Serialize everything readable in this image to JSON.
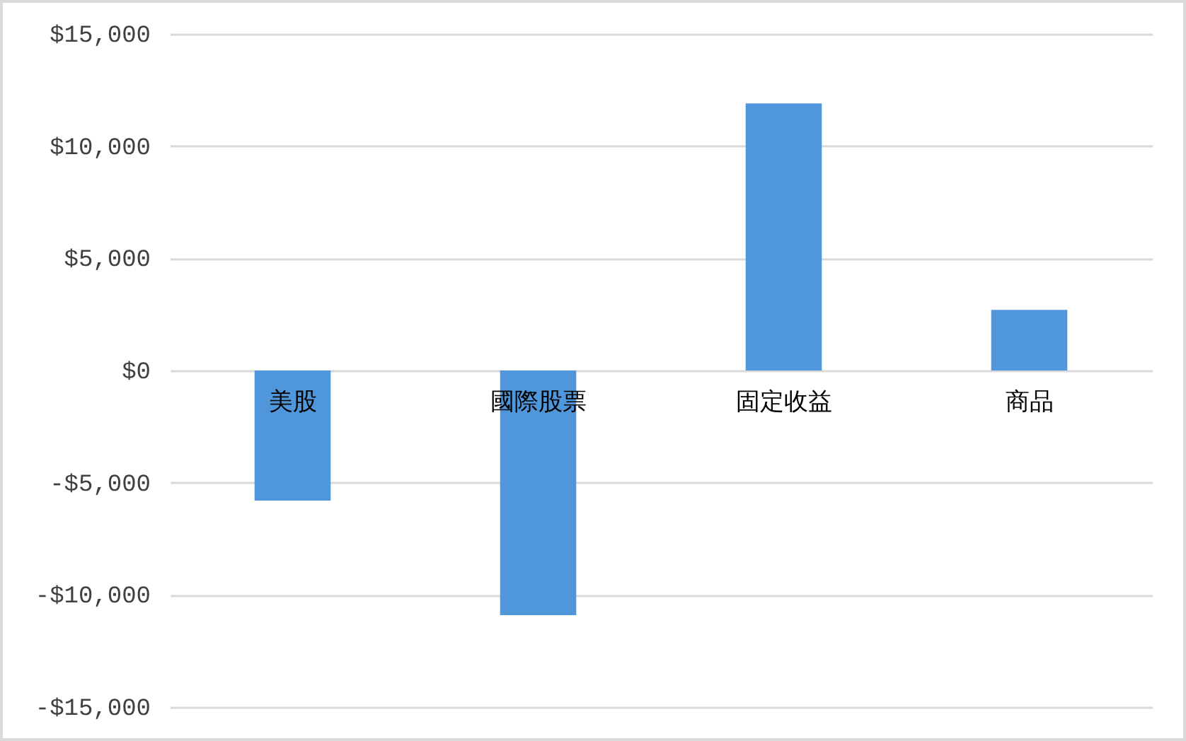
{
  "chart_data": {
    "type": "bar",
    "categories": [
      "美股",
      "國際股票",
      "固定收益",
      "商品"
    ],
    "values": [
      -5800,
      -10900,
      11900,
      2700
    ],
    "color": "#4f96da",
    "ylim": [
      -15000,
      15000
    ],
    "yticks": [
      {
        "value": -15000,
        "label": "-$15,000"
      },
      {
        "value": -10000,
        "label": "-$10,000"
      },
      {
        "value": -5000,
        "label": "-$5,000"
      },
      {
        "value": 0,
        "label": "$0"
      },
      {
        "value": 5000,
        "label": "$5,000"
      },
      {
        "value": 10000,
        "label": "$10,000"
      },
      {
        "value": 15000,
        "label": "$15,000"
      }
    ],
    "grid": "y"
  }
}
